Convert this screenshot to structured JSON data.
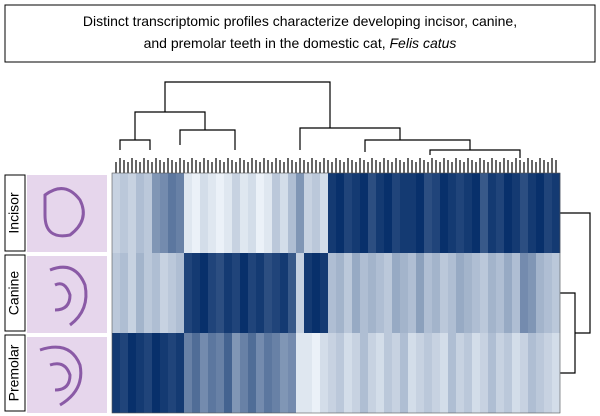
{
  "title": {
    "line1": "Distinct transcriptomic profiles characterize developing incisor, canine,",
    "line2": "and premolar teeth in the domestic cat,",
    "italic": "Felis catus"
  },
  "heatmap": {
    "rows": [
      {
        "label": "Incisor",
        "values": [
          0.2,
          0.25,
          0.2,
          0.3,
          0.25,
          0.5,
          0.55,
          0.65,
          0.6,
          0.1,
          0.05,
          0.15,
          0.1,
          0.05,
          0.1,
          0.2,
          0.1,
          0.15,
          0.05,
          0.1,
          0.25,
          0.15,
          0.3,
          0.5,
          0.2,
          0.25,
          0.15,
          0.95,
          1,
          0.9,
          0.95,
          1,
          0.85,
          0.95,
          1,
          0.9,
          0.95,
          0.95,
          1,
          0.85,
          0.9,
          1,
          0.95,
          0.9,
          0.95,
          1,
          0.8,
          0.95,
          0.9,
          1,
          0.95,
          0.85,
          0.95,
          1,
          0.9,
          0.95
        ]
      },
      {
        "label": "Canine",
        "values": [
          0.25,
          0.3,
          0.2,
          0.35,
          0.25,
          0.3,
          0.2,
          0.25,
          0.3,
          0.9,
          0.95,
          1,
          0.9,
          0.85,
          0.95,
          0.9,
          1,
          0.9,
          0.95,
          0.85,
          0.9,
          0.95,
          0.8,
          0.2,
          0.95,
          1,
          0.95,
          0.3,
          0.35,
          0.25,
          0.4,
          0.3,
          0.35,
          0.3,
          0.25,
          0.4,
          0.35,
          0.3,
          0.45,
          0.3,
          0.35,
          0.25,
          0.3,
          0.4,
          0.35,
          0.3,
          0.25,
          0.35,
          0.3,
          0.4,
          0.3,
          0.55,
          0.5,
          0.35,
          0.3,
          0.25
        ]
      },
      {
        "label": "Premolar",
        "values": [
          0.95,
          0.9,
          1,
          0.95,
          0.9,
          1,
          0.95,
          0.9,
          0.95,
          0.6,
          0.7,
          0.55,
          0.65,
          0.6,
          0.75,
          0.5,
          0.6,
          0.7,
          0.55,
          0.65,
          0.6,
          0.5,
          0.55,
          0.1,
          0.1,
          0.05,
          0.15,
          0.2,
          0.25,
          0.15,
          0.2,
          0.3,
          0.2,
          0.15,
          0.25,
          0.2,
          0.3,
          0.15,
          0.2,
          0.25,
          0.2,
          0.15,
          0.3,
          0.2,
          0.25,
          0.15,
          0.2,
          0.3,
          0.2,
          0.25,
          0.15,
          0.2,
          0.3,
          0.25,
          0.2,
          0.15
        ]
      }
    ]
  }
}
